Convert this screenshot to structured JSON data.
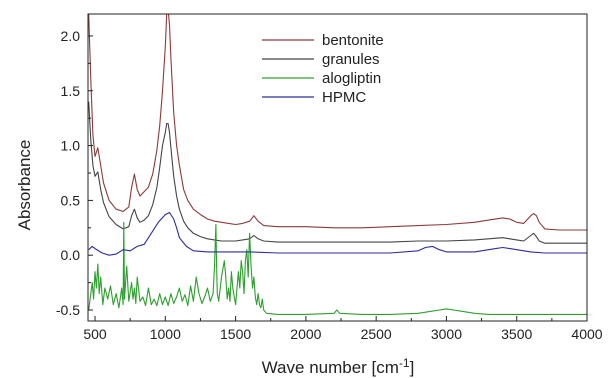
{
  "chart_data": {
    "type": "line",
    "title": "",
    "xlabel": "Wave number [cm",
    "xlabel_sup": "-1",
    "xlabel_suffix": "]",
    "ylabel": "Absorbance",
    "xlim": [
      450,
      4000
    ],
    "ylim": [
      -0.6,
      2.2
    ],
    "xticks": [
      500,
      1000,
      1500,
      2000,
      2500,
      3000,
      3500,
      4000
    ],
    "yticks": [
      -0.5,
      0.0,
      0.5,
      1.0,
      1.5,
      2.0
    ],
    "ytick_labels": [
      "-0.5",
      "0.0",
      "0.5",
      "1.0",
      "1.5",
      "2.0"
    ],
    "grid": false,
    "legend_position": "top-center",
    "series": [
      {
        "name": "bentonite",
        "color": "#8b3a3a",
        "x": [
          455,
          470,
          485,
          500,
          520,
          540,
          560,
          600,
          650,
          700,
          740,
          760,
          780,
          800,
          820,
          850,
          880,
          910,
          940,
          960,
          980,
          1000,
          1010,
          1020,
          1030,
          1040,
          1060,
          1080,
          1100,
          1130,
          1160,
          1200,
          1250,
          1300,
          1350,
          1400,
          1450,
          1500,
          1550,
          1600,
          1630,
          1660,
          1700,
          1800,
          2000,
          2200,
          2400,
          2600,
          2800,
          3000,
          3200,
          3300,
          3400,
          3450,
          3500,
          3550,
          3600,
          3620,
          3640,
          3660,
          3700,
          3800,
          4000
        ],
        "values": [
          2.2,
          1.6,
          1.1,
          0.9,
          0.98,
          0.82,
          0.66,
          0.5,
          0.42,
          0.4,
          0.44,
          0.62,
          0.74,
          0.6,
          0.54,
          0.58,
          0.62,
          0.74,
          0.96,
          1.18,
          1.5,
          1.9,
          2.2,
          2.24,
          2.1,
          1.8,
          1.3,
          1.0,
          0.82,
          0.6,
          0.5,
          0.42,
          0.37,
          0.33,
          0.31,
          0.3,
          0.29,
          0.28,
          0.29,
          0.31,
          0.36,
          0.31,
          0.27,
          0.26,
          0.26,
          0.25,
          0.25,
          0.26,
          0.27,
          0.28,
          0.3,
          0.32,
          0.34,
          0.33,
          0.3,
          0.29,
          0.36,
          0.38,
          0.36,
          0.3,
          0.24,
          0.23,
          0.23
        ]
      },
      {
        "name": "granules",
        "color": "#444444",
        "x": [
          455,
          470,
          485,
          500,
          520,
          540,
          560,
          600,
          650,
          700,
          740,
          760,
          780,
          800,
          820,
          850,
          880,
          910,
          940,
          960,
          980,
          1000,
          1010,
          1020,
          1030,
          1040,
          1060,
          1080,
          1100,
          1130,
          1160,
          1200,
          1250,
          1300,
          1350,
          1400,
          1450,
          1500,
          1550,
          1600,
          1630,
          1660,
          1700,
          1800,
          2000,
          2200,
          2400,
          2600,
          2800,
          3000,
          3200,
          3300,
          3400,
          3450,
          3500,
          3550,
          3600,
          3620,
          3640,
          3660,
          3700,
          3800,
          4000
        ],
        "values": [
          1.4,
          1.05,
          0.82,
          0.72,
          0.76,
          0.6,
          0.48,
          0.35,
          0.28,
          0.24,
          0.26,
          0.36,
          0.42,
          0.34,
          0.3,
          0.32,
          0.36,
          0.46,
          0.62,
          0.8,
          1.0,
          1.12,
          1.2,
          1.2,
          1.12,
          0.98,
          0.72,
          0.54,
          0.42,
          0.31,
          0.25,
          0.2,
          0.17,
          0.15,
          0.14,
          0.13,
          0.13,
          0.13,
          0.14,
          0.15,
          0.18,
          0.15,
          0.13,
          0.12,
          0.12,
          0.12,
          0.12,
          0.12,
          0.13,
          0.13,
          0.14,
          0.15,
          0.16,
          0.15,
          0.14,
          0.13,
          0.18,
          0.2,
          0.17,
          0.13,
          0.11,
          0.11,
          0.11
        ]
      },
      {
        "name": "alogliptin",
        "color": "#2e9e2e",
        "x": [
          455,
          470,
          480,
          490,
          500,
          510,
          520,
          530,
          540,
          555,
          570,
          590,
          610,
          630,
          650,
          670,
          690,
          700,
          705,
          710,
          715,
          725,
          740,
          760,
          770,
          780,
          790,
          800,
          820,
          840,
          860,
          880,
          900,
          920,
          940,
          960,
          980,
          1000,
          1020,
          1040,
          1060,
          1080,
          1100,
          1120,
          1140,
          1160,
          1180,
          1200,
          1220,
          1240,
          1260,
          1280,
          1300,
          1320,
          1340,
          1350,
          1360,
          1365,
          1370,
          1380,
          1400,
          1420,
          1430,
          1440,
          1450,
          1460,
          1470,
          1480,
          1500,
          1520,
          1530,
          1540,
          1550,
          1560,
          1570,
          1580,
          1590,
          1600,
          1610,
          1620,
          1630,
          1640,
          1650,
          1660,
          1670,
          1680,
          1690,
          1700,
          1720,
          1800,
          2000,
          2200,
          2220,
          2240,
          2400,
          2600,
          2800,
          2850,
          2900,
          2950,
          3000,
          3050,
          3100,
          3150,
          3200,
          3300,
          3500,
          3700,
          4000
        ],
        "values": [
          -0.5,
          -0.35,
          -0.25,
          -0.4,
          -0.15,
          -0.3,
          -0.08,
          -0.35,
          -0.2,
          -0.45,
          -0.3,
          -0.4,
          -0.28,
          -0.45,
          -0.35,
          -0.48,
          -0.3,
          -0.45,
          0.3,
          -0.4,
          -0.3,
          -0.1,
          -0.42,
          -0.25,
          -0.4,
          -0.3,
          -0.44,
          -0.2,
          -0.42,
          -0.38,
          -0.46,
          -0.3,
          -0.45,
          -0.4,
          -0.46,
          -0.35,
          -0.45,
          -0.38,
          -0.46,
          -0.35,
          -0.44,
          -0.38,
          -0.3,
          -0.42,
          -0.36,
          -0.46,
          -0.28,
          -0.42,
          -0.2,
          -0.35,
          -0.44,
          -0.38,
          -0.3,
          -0.42,
          -0.35,
          -0.1,
          0.28,
          -0.1,
          -0.35,
          -0.42,
          -0.2,
          -0.05,
          -0.2,
          -0.4,
          -0.3,
          -0.42,
          -0.15,
          -0.3,
          -0.45,
          -0.15,
          -0.3,
          -0.05,
          -0.15,
          -0.35,
          -0.05,
          0.05,
          -0.2,
          0.2,
          -0.1,
          -0.3,
          -0.2,
          -0.38,
          -0.45,
          -0.35,
          -0.45,
          -0.48,
          -0.4,
          -0.5,
          -0.53,
          -0.54,
          -0.54,
          -0.53,
          -0.5,
          -0.53,
          -0.54,
          -0.54,
          -0.53,
          -0.52,
          -0.51,
          -0.5,
          -0.49,
          -0.5,
          -0.51,
          -0.52,
          -0.53,
          -0.54,
          -0.54,
          -0.54,
          -0.54
        ]
      },
      {
        "name": "HPMC",
        "color": "#2c2c9c",
        "x": [
          455,
          480,
          500,
          550,
          600,
          650,
          700,
          750,
          800,
          850,
          900,
          950,
          1000,
          1030,
          1060,
          1080,
          1100,
          1150,
          1200,
          1300,
          1400,
          1500,
          1600,
          1800,
          2000,
          2200,
          2400,
          2600,
          2800,
          2850,
          2900,
          2950,
          3000,
          3200,
          3350,
          3400,
          3450,
          3500,
          3550,
          3600,
          3700,
          4000
        ],
        "values": [
          0.05,
          0.08,
          0.06,
          0.02,
          0.0,
          0.01,
          0.05,
          0.04,
          0.08,
          0.1,
          0.2,
          0.3,
          0.37,
          0.39,
          0.33,
          0.25,
          0.16,
          0.08,
          0.04,
          0.03,
          0.03,
          0.03,
          0.03,
          0.02,
          0.02,
          0.02,
          0.02,
          0.02,
          0.04,
          0.07,
          0.08,
          0.05,
          0.03,
          0.03,
          0.06,
          0.07,
          0.06,
          0.05,
          0.04,
          0.03,
          0.02,
          0.02
        ]
      }
    ]
  }
}
